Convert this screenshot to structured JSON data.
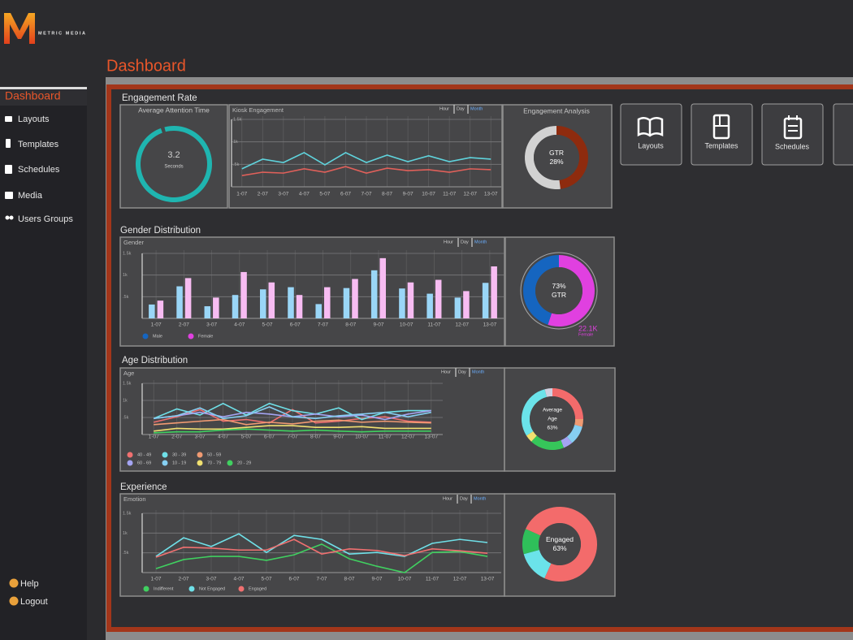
{
  "header": {
    "logo_letter": "M",
    "brand": "METRIC MEDIA",
    "page_title": "Dashboard"
  },
  "sidebar": {
    "items": [
      "Dashboard",
      "Layouts",
      "Templates",
      "Schedules",
      "Media",
      "Users Groups"
    ],
    "footer": [
      "Help",
      "Logout"
    ]
  },
  "quick_links": [
    "Layouts",
    "Templates",
    "Schedules"
  ],
  "section_titles": [
    "Engagement Rate",
    "Gender Distribution",
    "Age Distribution",
    "Experience"
  ],
  "range_tabs": [
    "Hour",
    "Day",
    "Month"
  ],
  "chart_data": [
    {
      "type": "gauge",
      "title": "Average Attention Time",
      "value": 3.2,
      "unit_label": "Seconds",
      "color": "#1fb5b0"
    },
    {
      "type": "line",
      "title": "Kiosk Engagement",
      "categories": [
        "1-07",
        "2-07",
        "3-07",
        "4-07",
        "5-07",
        "6-07",
        "7-07",
        "8-07",
        "9-07",
        "10-07",
        "11-07",
        "12-07",
        "13-07"
      ],
      "ylim": [
        0,
        1500
      ],
      "yticks": [
        {
          "value": 500,
          "label": ".5k"
        },
        {
          "value": 1000,
          "label": "1k"
        },
        {
          "value": 1500,
          "label": "1.5k"
        }
      ],
      "series": [
        {
          "color": "#5fd3dc",
          "values": [
            400,
            615,
            540,
            760,
            490,
            760,
            540,
            705,
            560,
            690,
            560,
            650,
            615
          ]
        },
        {
          "color": "#e0605a",
          "values": [
            250,
            325,
            305,
            400,
            325,
            450,
            305,
            415,
            360,
            380,
            325,
            400,
            380
          ]
        }
      ]
    },
    {
      "type": "donut",
      "title": "Engagement Analysis",
      "center_labels": [
        "GTR",
        "28%"
      ],
      "values": [
        48,
        52
      ],
      "colors": [
        "#8e2b0e",
        "#d2d2d2"
      ]
    },
    {
      "type": "bar",
      "title": "Gender",
      "categories": [
        "1-07",
        "2-07",
        "3-07",
        "4-07",
        "5-07",
        "6-07",
        "7-07",
        "8-07",
        "9-07",
        "10-07",
        "11-07",
        "12-07",
        "13-07"
      ],
      "ylim": [
        0,
        1500
      ],
      "yticks": [
        {
          "value": 500,
          "label": ".5k"
        },
        {
          "value": 1000,
          "label": "1k"
        },
        {
          "value": 1500,
          "label": "1.5k"
        }
      ],
      "series": [
        {
          "name": "Male",
          "color": "#9ad6f7",
          "legend_color": "#1565c0",
          "values": [
            320,
            740,
            280,
            540,
            670,
            720,
            330,
            700,
            1110,
            690,
            570,
            480,
            820
          ]
        },
        {
          "name": "Female",
          "color": "#f7bcf2",
          "legend_color": "#e040e0",
          "values": [
            410,
            930,
            480,
            1070,
            830,
            540,
            720,
            910,
            1390,
            830,
            890,
            630,
            1200
          ]
        }
      ]
    },
    {
      "type": "donut",
      "center_labels": [
        "73%",
        "GTR"
      ],
      "callout": [
        "22.1K",
        "Female"
      ],
      "callout_color": "#e040e0",
      "values": [
        55,
        45
      ],
      "colors": [
        "#e040e0",
        "#1565c0"
      ]
    },
    {
      "type": "line",
      "title": "Age",
      "categories": [
        "1-07",
        "2-07",
        "3-07",
        "4-07",
        "5-07",
        "6-07",
        "7-07",
        "8-07",
        "9-07",
        "10-07",
        "11-07",
        "12-07",
        "13-07"
      ],
      "ylim": [
        0,
        1500
      ],
      "yticks": [
        {
          "value": 500,
          "label": ".5k"
        },
        {
          "value": 1000,
          "label": "1k"
        },
        {
          "value": 1500,
          "label": "1.5k"
        }
      ],
      "series": [
        {
          "name": "40 - 49",
          "color": "#f07070",
          "values": [
            360,
            520,
            730,
            390,
            440,
            340,
            730,
            340,
            390,
            470,
            520,
            390,
            360
          ]
        },
        {
          "name": "30 - 39",
          "color": "#6fe0e8",
          "values": [
            470,
            750,
            570,
            910,
            570,
            910,
            700,
            600,
            780,
            440,
            650,
            700,
            700
          ]
        },
        {
          "name": "50 - 59",
          "color": "#f09a72",
          "values": [
            290,
            340,
            390,
            440,
            290,
            360,
            310,
            390,
            420,
            360,
            390,
            360,
            340
          ]
        },
        {
          "name": "60 - 69",
          "color": "#a4a4f2",
          "values": [
            470,
            550,
            650,
            520,
            650,
            600,
            520,
            600,
            520,
            570,
            440,
            600,
            700
          ]
        },
        {
          "name": "10 - 19",
          "color": "#86cff2",
          "values": [
            470,
            550,
            780,
            470,
            550,
            810,
            520,
            470,
            550,
            600,
            650,
            520,
            650
          ]
        },
        {
          "name": "70 - 79",
          "color": "#f0e070",
          "values": [
            100,
            180,
            160,
            160,
            210,
            260,
            260,
            210,
            210,
            230,
            180,
            180,
            180
          ]
        },
        {
          "name": "20 - 29",
          "color": "#40d060",
          "values": [
            50,
            80,
            80,
            130,
            160,
            130,
            100,
            130,
            100,
            80,
            100,
            100,
            100
          ]
        }
      ]
    },
    {
      "type": "donut",
      "center_labels": [
        "Average",
        "Age",
        "63%"
      ],
      "values": [
        25,
        4,
        10,
        5,
        18,
        4,
        30,
        4
      ],
      "colors": [
        "#f36b6b",
        "#f09a72",
        "#86cff2",
        "#a4a4f2",
        "#36c65a",
        "#f0e070",
        "#6be3ea",
        "#d0d0e0"
      ]
    },
    {
      "type": "line",
      "title": "Emotion",
      "categories": [
        "1-07",
        "2-07",
        "3-07",
        "4-07",
        "5-07",
        "6-07",
        "7-07",
        "8-07",
        "9-07",
        "10-07",
        "11-07",
        "12-07",
        "13-07"
      ],
      "ylim": [
        0,
        1500
      ],
      "yticks": [
        {
          "value": 500,
          "label": ".5k"
        },
        {
          "value": 1000,
          "label": "1k"
        },
        {
          "value": 1500,
          "label": "1.5k"
        }
      ],
      "series": [
        {
          "name": "Indifferent",
          "color": "#40d060",
          "values": [
            100,
            330,
            410,
            410,
            310,
            450,
            720,
            350,
            160,
            0,
            510,
            530,
            410
          ]
        },
        {
          "name": "Not Engaged",
          "color": "#6fe0e8",
          "values": [
            410,
            880,
            660,
            980,
            510,
            940,
            840,
            470,
            510,
            410,
            740,
            840,
            760
          ]
        },
        {
          "name": "Engaged",
          "color": "#f07070",
          "values": [
            390,
            640,
            620,
            570,
            570,
            840,
            470,
            600,
            560,
            430,
            600,
            550,
            490
          ]
        }
      ]
    },
    {
      "type": "donut",
      "center_labels": [
        "Engaged",
        "63%"
      ],
      "values": [
        75,
        14,
        11
      ],
      "colors": [
        "#f36b6b",
        "#6be3ea",
        "#2fbf5a"
      ]
    }
  ]
}
